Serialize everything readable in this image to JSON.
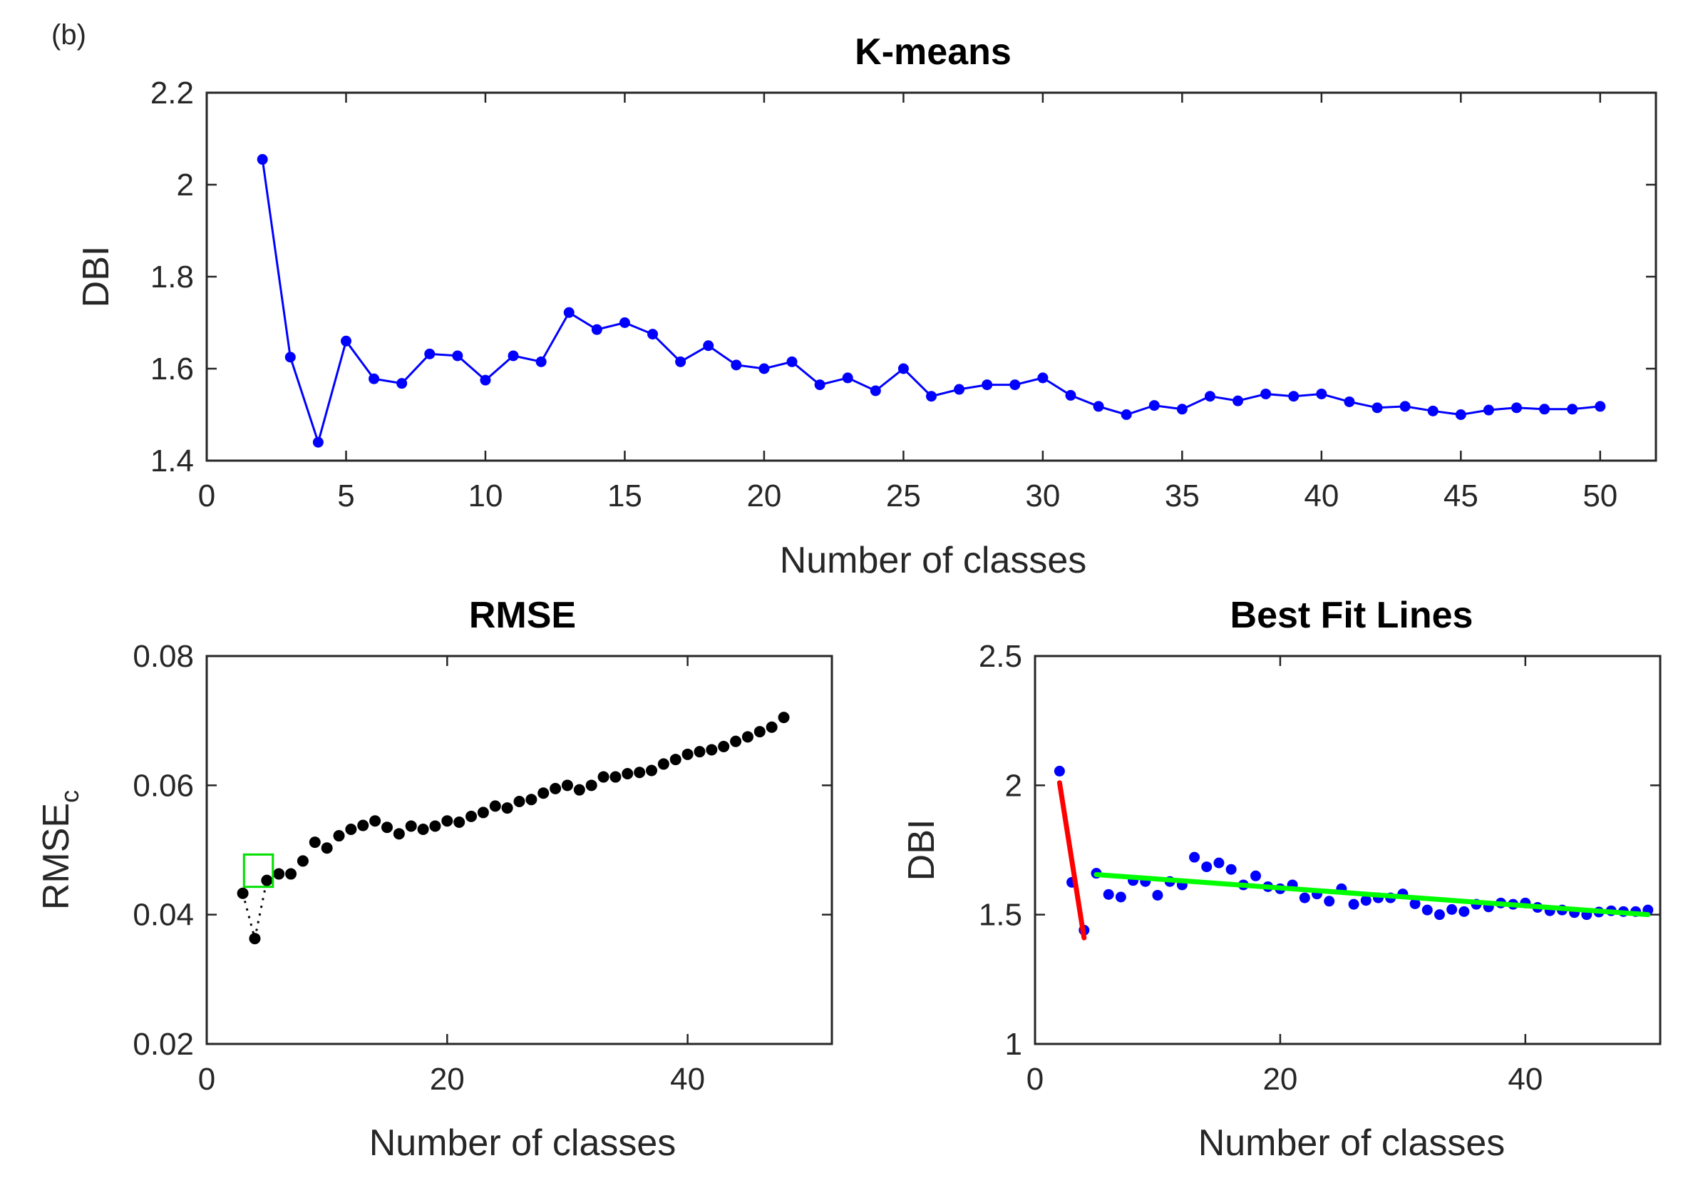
{
  "panel_label": "(b)",
  "colors": {
    "kmeans_line": "#0000ff",
    "rmse_points": "#000000",
    "highlight_box": "#00e000",
    "fit_red": "#ff0000",
    "fit_green": "#00ff00",
    "fit_points": "#0000ff"
  },
  "chart_data": [
    {
      "id": "kmeans",
      "type": "line",
      "title": "K-means",
      "xlabel": "Number of classes",
      "ylabel": "DBI",
      "xlim": [
        0,
        52
      ],
      "ylim": [
        1.4,
        2.2
      ],
      "xticks": [
        0,
        5,
        10,
        15,
        20,
        25,
        30,
        35,
        40,
        45,
        50
      ],
      "yticks": [
        1.4,
        1.6,
        1.8,
        2,
        2.2
      ],
      "ytick_labels": [
        "1.4",
        "1.6",
        "1.8",
        "2",
        "2.2"
      ],
      "series": [
        {
          "name": "DBI",
          "x": [
            2,
            3,
            4,
            5,
            6,
            7,
            8,
            9,
            10,
            11,
            12,
            13,
            14,
            15,
            16,
            17,
            18,
            19,
            20,
            21,
            22,
            23,
            24,
            25,
            26,
            27,
            28,
            29,
            30,
            31,
            32,
            33,
            34,
            35,
            36,
            37,
            38,
            39,
            40,
            41,
            42,
            43,
            44,
            45,
            46,
            47,
            48,
            49,
            50
          ],
          "y": [
            2.055,
            1.625,
            1.44,
            1.66,
            1.578,
            1.568,
            1.632,
            1.628,
            1.575,
            1.628,
            1.615,
            1.722,
            1.685,
            1.7,
            1.675,
            1.615,
            1.65,
            1.608,
            1.6,
            1.615,
            1.565,
            1.58,
            1.552,
            1.6,
            1.54,
            1.555,
            1.565,
            1.565,
            1.58,
            1.542,
            1.518,
            1.5,
            1.52,
            1.512,
            1.54,
            1.53,
            1.545,
            1.54,
            1.545,
            1.528,
            1.515,
            1.518,
            1.508,
            1.5,
            1.51,
            1.515,
            1.512,
            1.512,
            1.518
          ]
        }
      ]
    },
    {
      "id": "rmse",
      "type": "scatter",
      "title": "RMSE",
      "xlabel": "Number of classes",
      "ylabel": "RMSE",
      "ylabel_subscript": "c",
      "xlim": [
        0,
        52
      ],
      "ylim": [
        0.02,
        0.08
      ],
      "xticks": [
        0,
        20,
        40
      ],
      "yticks": [
        0.02,
        0.04,
        0.06,
        0.08
      ],
      "ytick_labels": [
        "0.02",
        "0.04",
        "0.06",
        "0.08"
      ],
      "series": [
        {
          "name": "RMSE_c",
          "x": [
            3,
            4,
            5,
            6,
            7,
            8,
            9,
            10,
            11,
            12,
            13,
            14,
            15,
            16,
            17,
            18,
            19,
            20,
            21,
            22,
            23,
            24,
            25,
            26,
            27,
            28,
            29,
            30,
            31,
            32,
            33,
            34,
            35,
            36,
            37,
            38,
            39,
            40,
            41,
            42,
            43,
            44,
            45,
            46,
            47,
            48
          ],
          "y": [
            0.0433,
            0.0363,
            0.0453,
            0.0463,
            0.0463,
            0.0483,
            0.0512,
            0.0503,
            0.0522,
            0.0532,
            0.0538,
            0.0545,
            0.0535,
            0.0525,
            0.0537,
            0.0532,
            0.0537,
            0.0545,
            0.0543,
            0.0552,
            0.0558,
            0.0568,
            0.0565,
            0.0575,
            0.0578,
            0.0588,
            0.0595,
            0.06,
            0.0593,
            0.06,
            0.0613,
            0.0613,
            0.0618,
            0.062,
            0.0623,
            0.0633,
            0.064,
            0.0648,
            0.0652,
            0.0655,
            0.066,
            0.0668,
            0.0675,
            0.0683,
            0.069,
            0.0705
          ]
        }
      ],
      "highlight_box": {
        "x_range": [
          3.1,
          5.5
        ],
        "y_range": [
          0.0443,
          0.0493
        ]
      }
    },
    {
      "id": "best_fit",
      "type": "scatter",
      "title": "Best Fit Lines",
      "xlabel": "Number of classes",
      "ylabel": "DBI",
      "xlim": [
        0,
        51
      ],
      "ylim": [
        1,
        2.5
      ],
      "xticks": [
        0,
        20,
        40
      ],
      "yticks": [
        1,
        1.5,
        2,
        2.5
      ],
      "ytick_labels": [
        "1",
        "1.5",
        "2",
        "2.5"
      ],
      "series": [
        {
          "name": "DBI",
          "x": [
            2,
            3,
            4,
            5,
            6,
            7,
            8,
            9,
            10,
            11,
            12,
            13,
            14,
            15,
            16,
            17,
            18,
            19,
            20,
            21,
            22,
            23,
            24,
            25,
            26,
            27,
            28,
            29,
            30,
            31,
            32,
            33,
            34,
            35,
            36,
            37,
            38,
            39,
            40,
            41,
            42,
            43,
            44,
            45,
            46,
            47,
            48,
            49,
            50
          ],
          "y": [
            2.055,
            1.625,
            1.44,
            1.66,
            1.578,
            1.568,
            1.632,
            1.628,
            1.575,
            1.628,
            1.615,
            1.722,
            1.685,
            1.7,
            1.675,
            1.615,
            1.65,
            1.608,
            1.6,
            1.615,
            1.565,
            1.58,
            1.552,
            1.6,
            1.54,
            1.555,
            1.565,
            1.565,
            1.58,
            1.542,
            1.518,
            1.5,
            1.52,
            1.512,
            1.54,
            1.53,
            1.545,
            1.54,
            1.545,
            1.528,
            1.515,
            1.518,
            1.508,
            1.5,
            1.51,
            1.515,
            1.512,
            1.512,
            1.518
          ]
        }
      ],
      "fit_lines": [
        {
          "name": "fit-left",
          "color": "red",
          "x": [
            2,
            4
          ],
          "y": [
            2.01,
            1.41
          ]
        },
        {
          "name": "fit-right",
          "color": "green",
          "x": [
            5,
            50
          ],
          "y": [
            1.655,
            1.5
          ]
        }
      ]
    }
  ]
}
